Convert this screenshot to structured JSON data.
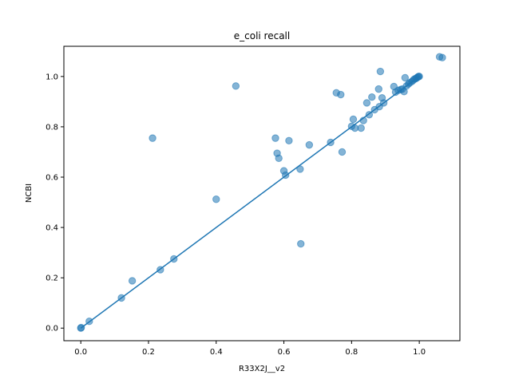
{
  "chart_data": {
    "type": "scatter",
    "title": "e_coli recall",
    "xlabel": "R33X2J__v2",
    "ylabel": "NCBI",
    "xlim": [
      -0.05,
      1.12
    ],
    "ylim": [
      -0.05,
      1.12
    ],
    "xticks": [
      "0.0",
      "0.2",
      "0.4",
      "0.6",
      "0.8",
      "1.0"
    ],
    "yticks": [
      "0.0",
      "0.2",
      "0.4",
      "0.6",
      "0.8",
      "1.0"
    ],
    "grid": false,
    "color": "#1f77b4",
    "marker_alpha": 0.55,
    "points": [
      [
        0.0,
        0.0
      ],
      [
        0.001,
        0.002
      ],
      [
        0.025,
        0.027
      ],
      [
        0.12,
        0.12
      ],
      [
        0.152,
        0.188
      ],
      [
        0.212,
        0.755
      ],
      [
        0.235,
        0.232
      ],
      [
        0.275,
        0.275
      ],
      [
        0.4,
        0.512
      ],
      [
        0.458,
        0.962
      ],
      [
        0.575,
        0.755
      ],
      [
        0.58,
        0.695
      ],
      [
        0.585,
        0.675
      ],
      [
        0.6,
        0.625
      ],
      [
        0.605,
        0.608
      ],
      [
        0.615,
        0.745
      ],
      [
        0.648,
        0.632
      ],
      [
        0.65,
        0.335
      ],
      [
        0.675,
        0.728
      ],
      [
        0.738,
        0.738
      ],
      [
        0.755,
        0.935
      ],
      [
        0.768,
        0.928
      ],
      [
        0.772,
        0.7
      ],
      [
        0.8,
        0.802
      ],
      [
        0.805,
        0.83
      ],
      [
        0.81,
        0.795
      ],
      [
        0.828,
        0.795
      ],
      [
        0.835,
        0.825
      ],
      [
        0.845,
        0.895
      ],
      [
        0.852,
        0.848
      ],
      [
        0.86,
        0.918
      ],
      [
        0.868,
        0.868
      ],
      [
        0.88,
        0.95
      ],
      [
        0.882,
        0.88
      ],
      [
        0.885,
        1.02
      ],
      [
        0.89,
        0.915
      ],
      [
        0.895,
        0.895
      ],
      [
        0.925,
        0.96
      ],
      [
        0.93,
        0.938
      ],
      [
        0.938,
        0.945
      ],
      [
        0.945,
        0.948
      ],
      [
        0.95,
        0.95
      ],
      [
        0.955,
        0.94
      ],
      [
        0.958,
        0.995
      ],
      [
        0.962,
        0.962
      ],
      [
        0.968,
        0.97
      ],
      [
        0.972,
        0.975
      ],
      [
        0.978,
        0.98
      ],
      [
        0.982,
        0.985
      ],
      [
        0.986,
        0.99
      ],
      [
        0.99,
        0.992
      ],
      [
        0.993,
        0.995
      ],
      [
        0.996,
        0.998
      ],
      [
        0.998,
        1.0
      ],
      [
        1.0,
        1.0
      ],
      [
        1.06,
        1.078
      ],
      [
        1.068,
        1.075
      ]
    ],
    "line": {
      "x": [
        0.0,
        1.0
      ],
      "y": [
        0.0,
        1.0
      ]
    }
  }
}
